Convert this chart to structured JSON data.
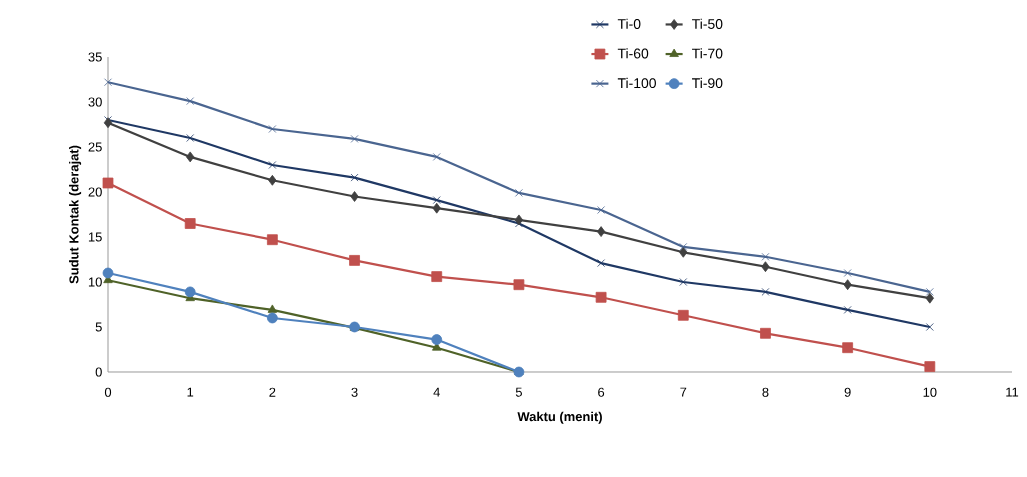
{
  "chart_data": {
    "type": "line",
    "xlabel": "Waktu (menit)",
    "ylabel": "Sudut Kontak (derajat)",
    "xlim": [
      0,
      11
    ],
    "xticks": [
      0,
      1,
      2,
      3,
      4,
      5,
      6,
      7,
      8,
      9,
      10,
      11
    ],
    "ylim": [
      0,
      35
    ],
    "yticks": [
      0,
      5,
      10,
      15,
      20,
      25,
      30,
      35
    ],
    "legend": "top right",
    "grid": false,
    "series": [
      {
        "name": "Ti-0",
        "color": "#1f3864",
        "marker": "cross",
        "x": [
          0,
          1,
          2,
          3,
          4,
          5,
          6,
          7,
          8,
          9,
          10
        ],
        "values": [
          28,
          26,
          23,
          21.6,
          19.1,
          16.5,
          12.1,
          10,
          8.9,
          6.9,
          5
        ]
      },
      {
        "name": "Ti-50",
        "color": "#404040",
        "marker": "diamond",
        "x": [
          0,
          1,
          2,
          3,
          4,
          5,
          6,
          7,
          8,
          9,
          10
        ],
        "values": [
          27.7,
          23.9,
          21.3,
          19.5,
          18.2,
          16.9,
          15.6,
          13.3,
          11.7,
          9.7,
          8.2
        ]
      },
      {
        "name": "Ti-60",
        "color": "#c0504d",
        "marker": "square",
        "x": [
          0,
          1,
          2,
          3,
          4,
          5,
          6,
          7,
          8,
          9,
          10
        ],
        "values": [
          21,
          16.5,
          14.7,
          12.4,
          10.6,
          9.7,
          8.3,
          6.3,
          4.3,
          2.7,
          0.6
        ]
      },
      {
        "name": "Ti-70",
        "color": "#4f6228",
        "marker": "triangle",
        "x": [
          0,
          1,
          2,
          3,
          4,
          5
        ],
        "values": [
          10.2,
          8.2,
          6.9,
          4.9,
          2.7,
          0
        ]
      },
      {
        "name": "Ti-100",
        "color": "#4a6590",
        "marker": "cross",
        "x": [
          0,
          1,
          2,
          3,
          4,
          5,
          6,
          7,
          8,
          9,
          10
        ],
        "values": [
          32.2,
          30.1,
          27,
          25.9,
          23.9,
          19.9,
          18,
          13.9,
          12.8,
          11,
          8.9
        ]
      },
      {
        "name": "Ti-90",
        "color": "#4f81bd",
        "marker": "circle",
        "x": [
          0,
          1,
          2,
          3,
          4,
          5
        ],
        "values": [
          11,
          8.9,
          6,
          5,
          3.6,
          0
        ]
      }
    ]
  }
}
